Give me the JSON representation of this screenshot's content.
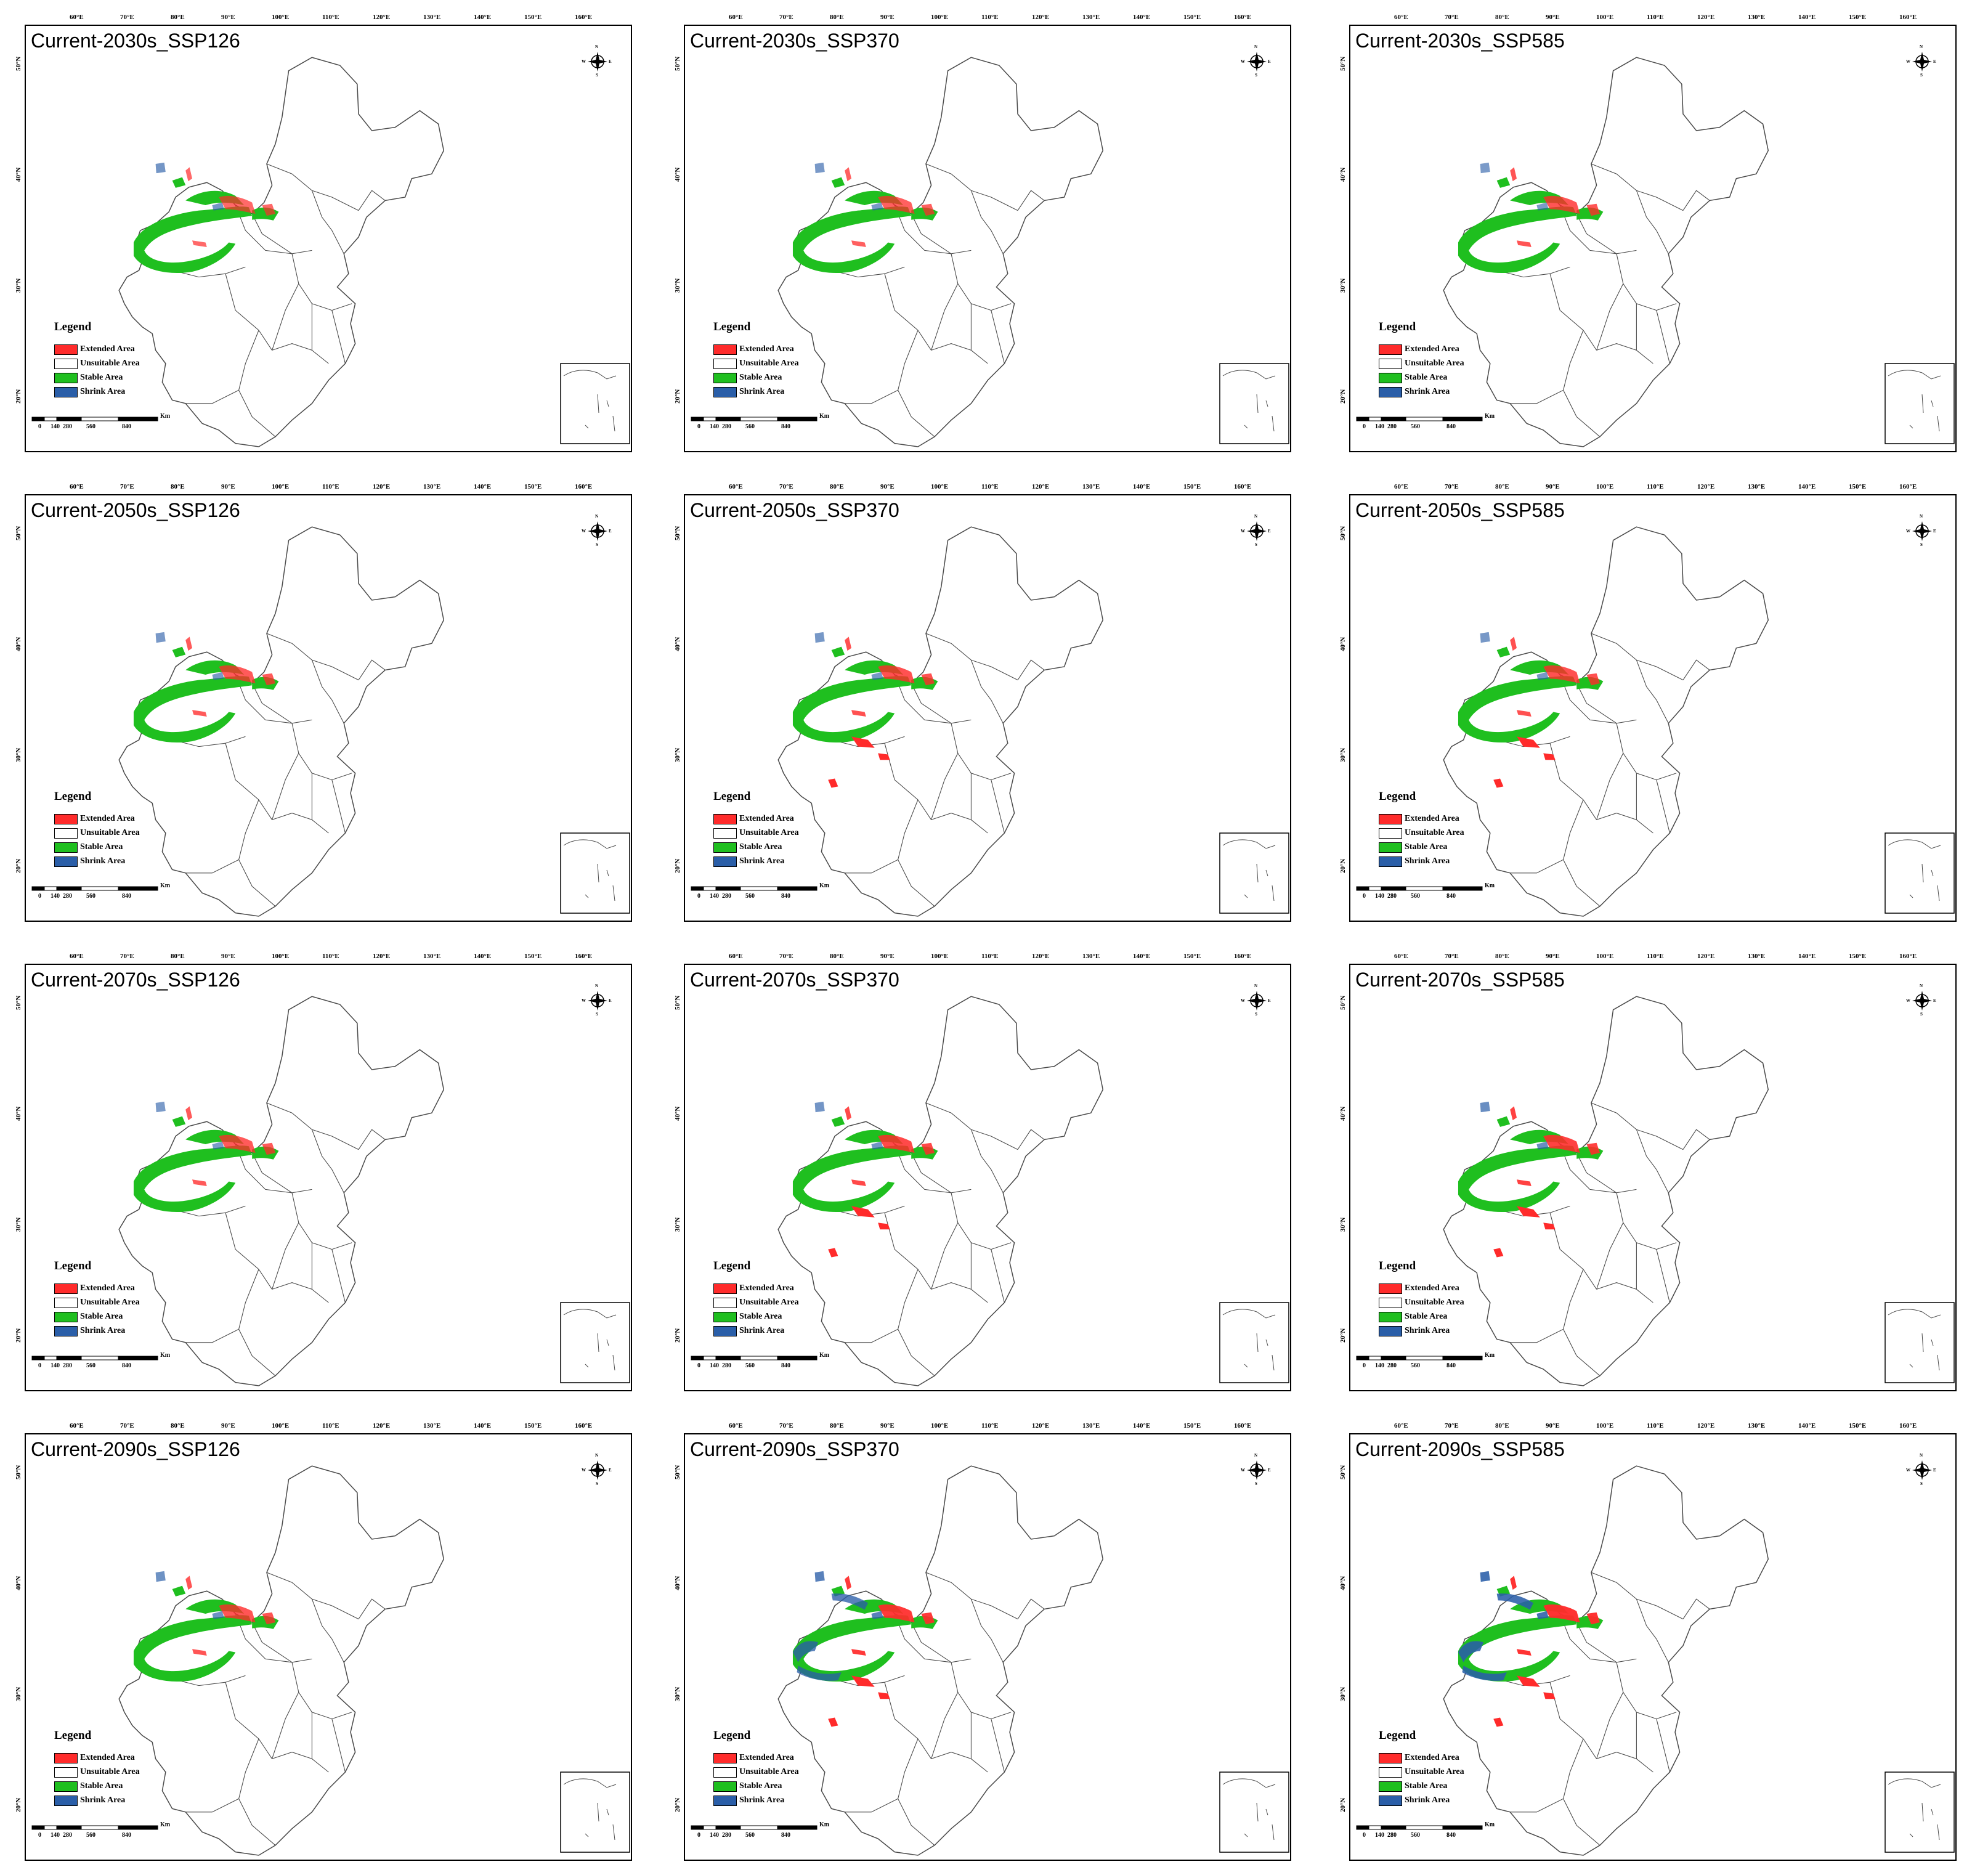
{
  "colors": {
    "extended": "#ff2b2b",
    "unsuitable": "#ffffff",
    "stable": "#1fbf1f",
    "shrink": "#2a5ea8",
    "border": "#4a4a4a"
  },
  "longitude_labels": [
    "60°E",
    "70°E",
    "80°E",
    "90°E",
    "100°E",
    "110°E",
    "120°E",
    "130°E",
    "140°E",
    "150°E",
    "160°E"
  ],
  "latitude_labels": [
    "50°N",
    "40°N",
    "30°N",
    "20°N"
  ],
  "legend": {
    "title": "Legend",
    "items": [
      {
        "label": "Extended Area",
        "color": "#ff2b2b"
      },
      {
        "label": "Unsuitable Area",
        "color": "#ffffff"
      },
      {
        "label": "Stable Area",
        "color": "#1fbf1f"
      },
      {
        "label": "Shrink Area",
        "color": "#2a5ea8"
      }
    ]
  },
  "scale_bar": {
    "ticks": [
      "0",
      "140",
      "280",
      "560",
      "840"
    ],
    "unit": "Km"
  },
  "compass": {
    "n": "N",
    "s": "S",
    "e": "E",
    "w": "W"
  },
  "panels": [
    {
      "title": "Current-2030s_SSP126",
      "shrink_level": 0.12,
      "extended_level": 0.35
    },
    {
      "title": "Current-2030s_SSP370",
      "shrink_level": 0.08,
      "extended_level": 0.45
    },
    {
      "title": "Current-2030s_SSP585",
      "shrink_level": 0.05,
      "extended_level": 0.55
    },
    {
      "title": "Current-2050s_SSP126",
      "shrink_level": 0.08,
      "extended_level": 0.5
    },
    {
      "title": "Current-2050s_SSP370",
      "shrink_level": 0.1,
      "extended_level": 0.6
    },
    {
      "title": "Current-2050s_SSP585",
      "shrink_level": 0.1,
      "extended_level": 0.6
    },
    {
      "title": "Current-2070s_SSP126",
      "shrink_level": 0.05,
      "extended_level": 0.5
    },
    {
      "title": "Current-2070s_SSP370",
      "shrink_level": 0.15,
      "extended_level": 0.7
    },
    {
      "title": "Current-2070s_SSP585",
      "shrink_level": 0.25,
      "extended_level": 0.75
    },
    {
      "title": "Current-2090s_SSP126",
      "shrink_level": 0.2,
      "extended_level": 0.55
    },
    {
      "title": "Current-2090s_SSP370",
      "shrink_level": 0.45,
      "extended_level": 0.85
    },
    {
      "title": "Current-2090s_SSP585",
      "shrink_level": 0.7,
      "extended_level": 0.9
    }
  ]
}
